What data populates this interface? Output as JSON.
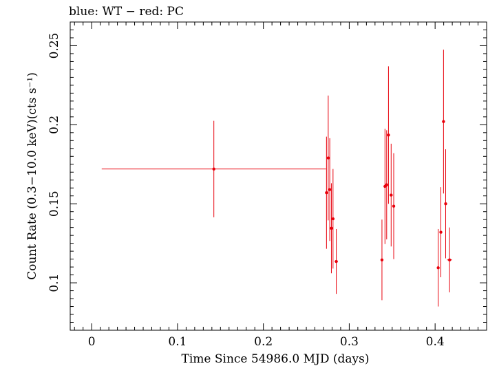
{
  "chart_data": {
    "type": "scatter",
    "title": "blue: WT − red: PC",
    "xlabel": "Time Since 54986.0 MJD (days)",
    "ylabel": "Count Rate (0.3−10.0 keV)(cts s⁻¹)",
    "xlim": [
      -0.025,
      0.46
    ],
    "ylim": [
      0.07,
      0.265
    ],
    "x_ticks": [
      0,
      0.1,
      0.2,
      0.3,
      0.4
    ],
    "x_tick_labels": [
      "0",
      "0.1",
      "0.2",
      "0.3",
      "0.4"
    ],
    "y_ticks": [
      0.1,
      0.15,
      0.2,
      0.25
    ],
    "y_tick_labels": [
      "0.1",
      "0.15",
      "0.2",
      "0.25"
    ],
    "grid": false,
    "series": [
      {
        "name": "PC",
        "color": "#e8000b",
        "points": [
          {
            "x": 0.1423,
            "xerr": 0.1306,
            "y": 0.172,
            "yerr": 0.0305
          },
          {
            "x": 0.2735,
            "xerr": 0.0009,
            "y": 0.157,
            "yerr": 0.0355
          },
          {
            "x": 0.2755,
            "xerr": 0.0009,
            "y": 0.179,
            "yerr": 0.0395
          },
          {
            "x": 0.2773,
            "xerr": 0.0009,
            "y": 0.159,
            "yerr": 0.0325
          },
          {
            "x": 0.2792,
            "xerr": 0.0009,
            "y": 0.1345,
            "yerr": 0.0285
          },
          {
            "x": 0.2811,
            "xerr": 0.0009,
            "y": 0.1405,
            "yerr": 0.0315
          },
          {
            "x": 0.2849,
            "xerr": 0.0019,
            "y": 0.1135,
            "yerr": 0.0205
          },
          {
            "x": 0.3381,
            "xerr": 0.0009,
            "y": 0.1145,
            "yerr": 0.0255
          },
          {
            "x": 0.3416,
            "xerr": 0.0009,
            "y": 0.161,
            "yerr": 0.0365
          },
          {
            "x": 0.3436,
            "xerr": 0.0009,
            "y": 0.162,
            "yerr": 0.0345
          },
          {
            "x": 0.3457,
            "xerr": 0.0009,
            "y": 0.1935,
            "yerr": 0.0435
          },
          {
            "x": 0.3488,
            "xerr": 0.0019,
            "y": 0.1555,
            "yerr": 0.0325
          },
          {
            "x": 0.3518,
            "xerr": 0.0009,
            "y": 0.1485,
            "yerr": 0.0335
          },
          {
            "x": 0.4036,
            "xerr": 0.0009,
            "y": 0.1095,
            "yerr": 0.0245
          },
          {
            "x": 0.4067,
            "xerr": 0.0009,
            "y": 0.132,
            "yerr": 0.0285
          },
          {
            "x": 0.4098,
            "xerr": 0.0009,
            "y": 0.202,
            "yerr": 0.0455
          },
          {
            "x": 0.4123,
            "xerr": 0.0009,
            "y": 0.15,
            "yerr": 0.0345
          },
          {
            "x": 0.4168,
            "xerr": 0.0029,
            "y": 0.1145,
            "yerr": 0.0205
          }
        ]
      }
    ]
  }
}
